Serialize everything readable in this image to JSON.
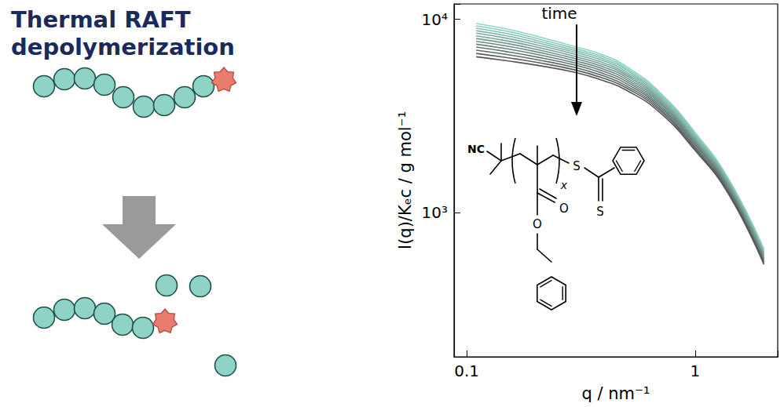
{
  "chart_data": {
    "type": "line",
    "xlabel": "q / nm⁻¹",
    "ylabel": "I(q)/Kₑc / g mol⁻¹",
    "annotation": "time",
    "log": true,
    "grid": false,
    "xlim": [
      0.088,
      2.3
    ],
    "ylim": [
      180,
      12000
    ],
    "xticks": [
      0.1,
      1
    ],
    "yticks": [
      {
        "value": 1000,
        "label": "10³"
      },
      {
        "value": 10000,
        "label": "10⁴"
      }
    ],
    "x": [
      0.11,
      0.15,
      0.2,
      0.3,
      0.4,
      0.5,
      0.7,
      1.0,
      1.4,
      2.0
    ],
    "series": [
      {
        "color": "#8fd6c8",
        "values": [
          9500,
          8900,
          8200,
          7200,
          6500,
          5700,
          4200,
          2600,
          1500,
          650
        ]
      },
      {
        "color": "#8acbbe",
        "values": [
          9240,
          8670,
          8000,
          7040,
          6360,
          5580,
          4130,
          2560,
          1480,
          640
        ]
      },
      {
        "color": "#85c1b5",
        "values": [
          8980,
          8430,
          7800,
          6880,
          6220,
          5470,
          4050,
          2520,
          1460,
          630
        ]
      },
      {
        "color": "#81b6ab",
        "values": [
          8730,
          8200,
          7600,
          6730,
          6080,
          5350,
          3980,
          2480,
          1440,
          620
        ]
      },
      {
        "color": "#7caba2",
        "values": [
          8470,
          7970,
          7400,
          6570,
          5930,
          5230,
          3900,
          2430,
          1420,
          610
        ]
      },
      {
        "color": "#77a098",
        "values": [
          8210,
          7730,
          7200,
          6410,
          5790,
          5120,
          3830,
          2390,
          1400,
          600
        ]
      },
      {
        "color": "#72968f",
        "values": [
          7950,
          7500,
          7000,
          6250,
          5650,
          5000,
          3750,
          2350,
          1380,
          590
        ]
      },
      {
        "color": "#6d8b85",
        "values": [
          7690,
          7270,
          6800,
          6090,
          5510,
          4880,
          3680,
          2310,
          1350,
          580
        ]
      },
      {
        "color": "#68807b",
        "values": [
          7430,
          7030,
          6600,
          5930,
          5370,
          4770,
          3600,
          2270,
          1330,
          570
        ]
      },
      {
        "color": "#637672",
        "values": [
          7180,
          6800,
          6400,
          5780,
          5220,
          4650,
          3530,
          2230,
          1310,
          560
        ]
      },
      {
        "color": "#5f6b68",
        "values": [
          6920,
          6570,
          6200,
          5620,
          5080,
          4530,
          3450,
          2180,
          1290,
          550
        ]
      },
      {
        "color": "#5a605f",
        "values": [
          6660,
          6330,
          6000,
          5460,
          4940,
          4420,
          3380,
          2140,
          1270,
          550
        ]
      },
      {
        "color": "#555555",
        "values": [
          6400,
          6100,
          5800,
          5300,
          4800,
          4300,
          3300,
          2100,
          1250,
          540
        ]
      }
    ]
  },
  "diagram": {
    "title": "Thermal RAFT depolymerization",
    "inset_labels": [
      "NC",
      "x",
      "S",
      "S",
      "O",
      "O"
    ]
  }
}
